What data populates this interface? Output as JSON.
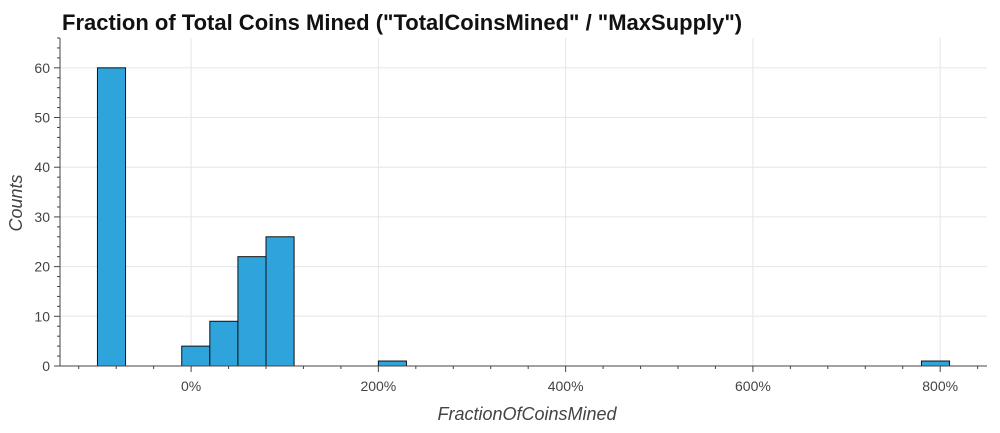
{
  "chart_data": {
    "type": "bar",
    "title": "Fraction of Total Coins Mined (\"TotalCoinsMined\" / \"MaxSupply\")",
    "xlabel": "FractionOfCoinsMined",
    "ylabel": "Counts",
    "x_unit": "fraction",
    "xlim": [
      -1.4,
      8.5
    ],
    "ylim": [
      0,
      66
    ],
    "x_ticks": [
      0,
      2,
      4,
      6,
      8
    ],
    "x_tick_labels": [
      "0%",
      "200%",
      "400%",
      "600%",
      "800%"
    ],
    "y_ticks": [
      0,
      10,
      20,
      30,
      40,
      50,
      60
    ],
    "y_tick_labels": [
      "0",
      "10",
      "20",
      "30",
      "40",
      "50",
      "60"
    ],
    "grid": true,
    "bin_width": 0.3,
    "bins": [
      {
        "left": -1.0,
        "right": -0.7,
        "count": 60
      },
      {
        "left": -0.1,
        "right": 0.2,
        "count": 4
      },
      {
        "left": 0.2,
        "right": 0.5,
        "count": 9
      },
      {
        "left": 0.5,
        "right": 0.8,
        "count": 22
      },
      {
        "left": 0.8,
        "right": 1.1,
        "count": 26
      },
      {
        "left": 2.0,
        "right": 2.3,
        "count": 1
      },
      {
        "left": 7.8,
        "right": 8.1,
        "count": 1
      }
    ],
    "colors": {
      "bar_fill": "#2fa4dc",
      "bar_stroke": "#111111",
      "grid": "#e6e6e6",
      "axis": "#444444"
    }
  }
}
